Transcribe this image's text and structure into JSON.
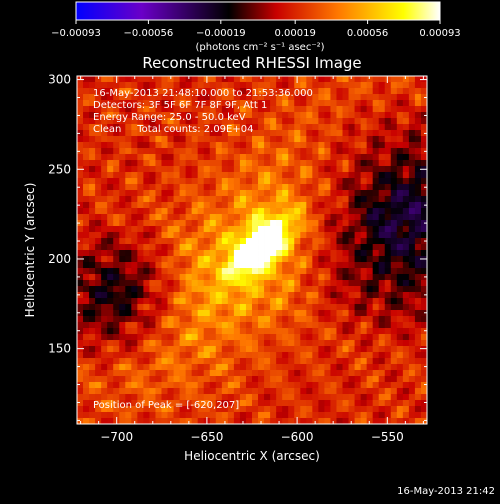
{
  "chart_data": {
    "type": "heatmap",
    "title": "Reconstructed RHESSI Image",
    "xlabel": "Heliocentric X (arcsec)",
    "ylabel": "Heliocentric Y (arcsec)",
    "xlim": [
      -722,
      -528
    ],
    "ylim": [
      108,
      302
    ],
    "x_ticks": [
      -700,
      -650,
      -600,
      -550
    ],
    "x_tick_labels": [
      "−700",
      "−650",
      "−600",
      "−550"
    ],
    "y_ticks": [
      150,
      200,
      250,
      300
    ],
    "y_tick_labels": [
      "150",
      "200",
      "250",
      "300"
    ],
    "colorbar": {
      "range": [
        -0.00093,
        0.00093
      ],
      "ticks": [
        -0.00093,
        -0.00056,
        -0.00019,
        0.00019,
        0.00056,
        0.00093
      ],
      "tick_labels": [
        "−0.00093",
        "−0.00056",
        "−0.00019",
        "0.00019",
        "0.00056",
        "0.00093"
      ],
      "unit_label": "(photons cm⁻² s⁻¹ asec⁻²)",
      "colormap": [
        "#0000ff",
        "#6a00c8",
        "#000000",
        "#c80000",
        "#ff7800",
        "#ffff00",
        "#ffffff"
      ]
    },
    "peak": {
      "x": -620,
      "y": 207
    },
    "annotations": [
      "16-May-2013 21:48:10.000 to 21:53:36.000",
      "Detectors: 3F 5F 6F 7F 8F 9F, Att 1",
      "Energy Range: 25.0 - 50.0 keV",
      "Clean     Total counts: 2.09E+04",
      "Position of Peak = [-620,207]"
    ],
    "timestamp": "16-May-2013 21:42",
    "grid": false
  }
}
